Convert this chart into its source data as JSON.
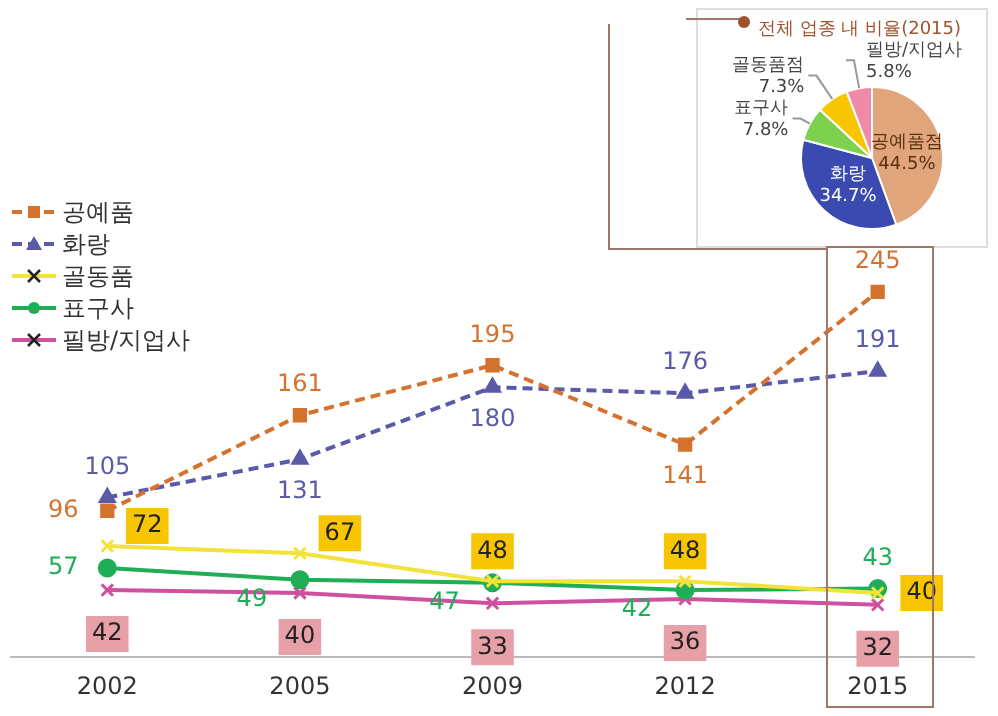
{
  "chart_data": [
    {
      "type": "line",
      "categories": [
        "2002",
        "2005",
        "2009",
        "2012",
        "2015"
      ],
      "data_labels": true,
      "legend": "top left",
      "series": [
        {
          "name": "공예품",
          "color": "#d4722e",
          "marker": "square",
          "line_style": "dashed",
          "values": [
            96,
            161,
            195,
            141,
            245
          ]
        },
        {
          "name": "화랑",
          "color": "#5a5aa8",
          "marker": "triangle",
          "line_style": "dashed",
          "values": [
            105,
            131,
            180,
            176,
            191
          ]
        },
        {
          "name": "골동품",
          "color": "#f2e23a",
          "marker": "cross",
          "line_style": "solid",
          "values": [
            72,
            67,
            48,
            48,
            40
          ]
        },
        {
          "name": "표구사",
          "color": "#1fae55",
          "marker": "circle",
          "line_style": "solid",
          "values": [
            57,
            49,
            47,
            42,
            43
          ]
        },
        {
          "name": "필방/지업사",
          "color": "#d050a0",
          "marker": "cross",
          "line_style": "solid",
          "values": [
            42,
            40,
            33,
            36,
            32
          ]
        }
      ]
    },
    {
      "type": "pie",
      "title": "전체 업종 내 비율(2015)",
      "categories": [
        "공예품점",
        "화랑",
        "표구사",
        "골동품점",
        "필방/지업사"
      ],
      "values": [
        44.5,
        34.7,
        7.8,
        7.3,
        5.8
      ],
      "value_labels": [
        "44.5%",
        "34.7%",
        "7.8%",
        "7.3%",
        "5.8%"
      ],
      "colors": [
        "#e0a57a",
        "#3b4ab0",
        "#7ed04f",
        "#f7c600",
        "#f08aa8"
      ],
      "data_labels": true
    }
  ]
}
